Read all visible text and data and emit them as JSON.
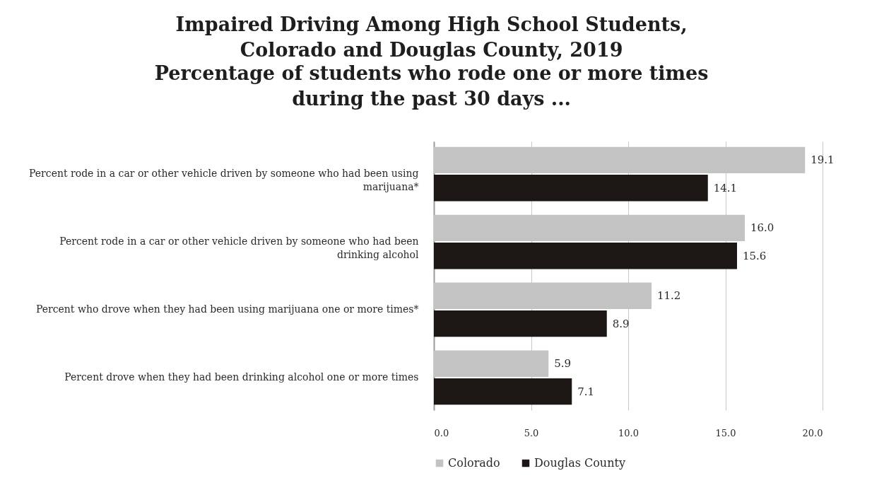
{
  "chart_data": {
    "type": "bar",
    "orientation": "horizontal",
    "title": "Impaired Driving Among High School Students, Colorado and Douglas County, 2019",
    "subtitle": "Percentage of students who rode one or more times during the past 30 days ...",
    "categories": [
      "Percent rode in a car or other vehicle driven by someone who had been using marijuana*",
      "Percent rode in a car or other vehicle driven by someone who had been drinking alcohol",
      "Percent who drove when they had been using marijuana one or more times*",
      "Percent drove when they had been drinking alcohol one or more times"
    ],
    "series": [
      {
        "name": "Colorado",
        "color": "#c3c3c3",
        "values": [
          19.1,
          16.0,
          11.2,
          5.9
        ],
        "value_labels": [
          "19.1",
          "16.0",
          "11.2",
          "5.9"
        ]
      },
      {
        "name": "Douglas County",
        "color": "#1c1714",
        "values": [
          14.1,
          15.6,
          8.9,
          7.1
        ],
        "value_labels": [
          "14.1",
          "15.6",
          "8.9",
          "7.1"
        ]
      }
    ],
    "xlim": [
      0,
      20
    ],
    "xticks": [
      {
        "value": 0,
        "label": "0.0"
      },
      {
        "value": 5,
        "label": "5.0"
      },
      {
        "value": 10,
        "label": "10.0"
      },
      {
        "value": 15,
        "label": "15.0"
      },
      {
        "value": 20,
        "label": "20.0"
      }
    ],
    "grid": "x",
    "legend": "bottom"
  }
}
